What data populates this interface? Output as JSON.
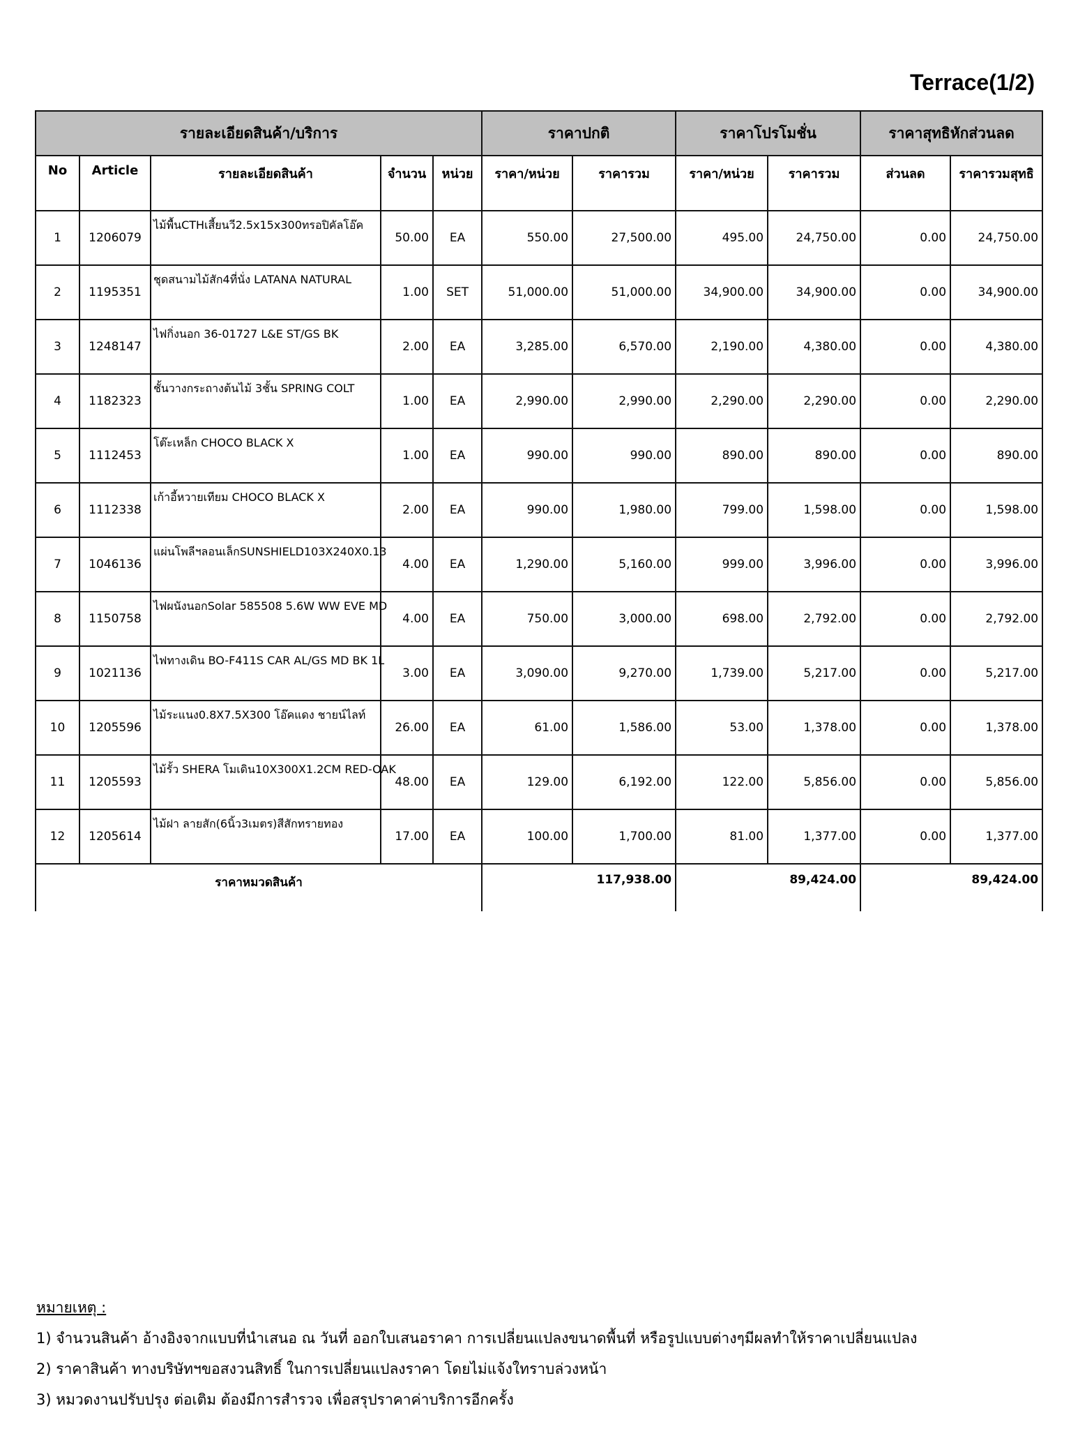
{
  "title": "Terrace(1/2)",
  "header_groups": [
    "รายละเอียดสินค้า/บริการ",
    "ราคาปกติ",
    "ราคาโปรโมชั่น",
    "ราคาสุทธิหักส่วนลด"
  ],
  "columns": [
    "No",
    "Article",
    "รายละเอียดสินค้า",
    "จำนวน",
    "หน่วย",
    "ราคา/หน่วย",
    "ราคารวม",
    "ราคา/หน่วย",
    "ราคารวม",
    "ส่วนลด",
    "ราคารวมสุทธิ"
  ],
  "rows": [
    [
      "1",
      "1206079",
      "ไม้พื้นCTHเสี้ยนวี2.5x15x300ทรอปิคัลโอ๊ค",
      "50.00",
      "EA",
      "550.00",
      "27,500.00",
      "495.00",
      "24,750.00",
      "0.00",
      "24,750.00"
    ],
    [
      "2",
      "1195351",
      "ชุดสนามไม้สัก4ที่นั่ง LATANA NATURAL",
      "1.00",
      "SET",
      "51,000.00",
      "51,000.00",
      "34,900.00",
      "34,900.00",
      "0.00",
      "34,900.00"
    ],
    [
      "3",
      "1248147",
      "ไฟกิ่งนอก 36-01727 L&E ST/GS BK",
      "2.00",
      "EA",
      "3,285.00",
      "6,570.00",
      "2,190.00",
      "4,380.00",
      "0.00",
      "4,380.00"
    ],
    [
      "4",
      "1182323",
      "ชั้นวางกระถางต้นไม้ 3ชั้น SPRING COLT",
      "1.00",
      "EA",
      "2,990.00",
      "2,990.00",
      "2,290.00",
      "2,290.00",
      "0.00",
      "2,290.00"
    ],
    [
      "5",
      "1112453",
      "โต๊ะเหล็ก CHOCO BLACK X",
      "1.00",
      "EA",
      "990.00",
      "990.00",
      "890.00",
      "890.00",
      "0.00",
      "890.00"
    ],
    [
      "6",
      "1112338",
      "เก้าอี้หวายเทียม CHOCO BLACK X",
      "2.00",
      "EA",
      "990.00",
      "1,980.00",
      "799.00",
      "1,598.00",
      "0.00",
      "1,598.00"
    ],
    [
      "7",
      "1046136",
      "แผ่นโพลีฯลอนเล็กSUNSHIELD103X240X0.13",
      "4.00",
      "EA",
      "1,290.00",
      "5,160.00",
      "999.00",
      "3,996.00",
      "0.00",
      "3,996.00"
    ],
    [
      "8",
      "1150758",
      "ไฟผนังนอกSolar 585508 5.6W WW EVE MD",
      "4.00",
      "EA",
      "750.00",
      "3,000.00",
      "698.00",
      "2,792.00",
      "0.00",
      "2,792.00"
    ],
    [
      "9",
      "1021136",
      "ไฟทางเดิน BO-F411S CAR AL/GS MD BK 1L",
      "3.00",
      "EA",
      "3,090.00",
      "9,270.00",
      "1,739.00",
      "5,217.00",
      "0.00",
      "5,217.00"
    ],
    [
      "10",
      "1205596",
      "ไม้ระแนง0.8X7.5X300 โอ๊คแดง ชายน์ไลท์",
      "26.00",
      "EA",
      "61.00",
      "1,586.00",
      "53.00",
      "1,378.00",
      "0.00",
      "1,378.00"
    ],
    [
      "11",
      "1205593",
      "ไม้รั้ว SHERA โมเดิน10X300X1.2CM RED-OAK",
      "48.00",
      "EA",
      "129.00",
      "6,192.00",
      "122.00",
      "5,856.00",
      "0.00",
      "5,856.00"
    ],
    [
      "12",
      "1205614",
      "ไม้ฝา ลายสัก(6นิ้ว3เมตร)สีสักทรายทอง",
      "17.00",
      "EA",
      "100.00",
      "1,700.00",
      "81.00",
      "1,377.00",
      "0.00",
      "1,377.00"
    ]
  ],
  "total": {
    "label": "ราคาหมวดสินค้า",
    "normal": "117,938.00",
    "promo": "89,424.00",
    "net": "89,424.00"
  },
  "notes": {
    "heading": "หมายเหตุ :",
    "lines": [
      "1) จำนวนสินค้า อ้างอิงจากแบบที่นำเสนอ ณ วันที่ ออกใบเสนอราคา การเปลี่ยนแปลงขนาดพื้นที่ หรือรูปแบบต่างๆมีผลทำให้ราคาเปลี่ยนแปลง",
      "2) ราคาสินค้า ทางบริษัทฯขอสงวนสิทธิ์ ในการเปลี่ยนแปลงราคา โดยไม่แจ้งใทราบล่วงหน้า",
      "3) หมวดงานปรับปรุง ต่อเติม ต้องมีการสำรวจ เพื่อสรุปราคาค่าบริการอีกครั้ง"
    ]
  }
}
